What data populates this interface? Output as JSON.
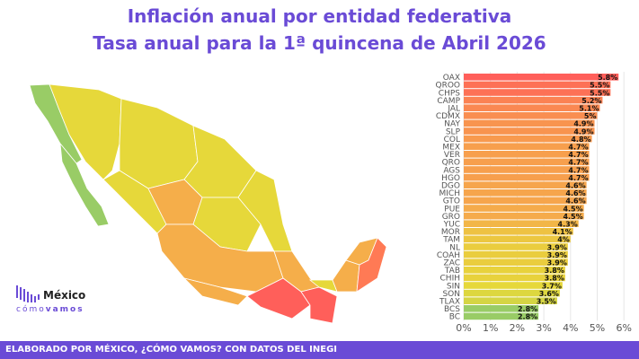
{
  "title": "Inflación anual por entidad federativa",
  "subtitle": "Tasa anual para la 1ª quincena de Abril 2026",
  "footer": "ELABORADO POR MÉXICO, ¿CÓMO VAMOS? CON DATOS DEL INEGI",
  "logo": {
    "name": "México",
    "tag_light": "cómo",
    "tag_bold": "vamos"
  },
  "chart_data": {
    "type": "bar",
    "orientation": "horizontal",
    "categories": [
      "OAX",
      "QROO",
      "CHPS",
      "CAMP",
      "JAL",
      "CDMX",
      "NAY",
      "SLP",
      "COL",
      "MEX",
      "VER",
      "QRO",
      "AGS",
      "HGO",
      "DGO",
      "MICH",
      "GTO",
      "PUE",
      "GRO",
      "YUC",
      "MOR",
      "TAM",
      "NL",
      "COAH",
      "ZAC",
      "TAB",
      "CHIH",
      "SIN",
      "SON",
      "TLAX",
      "BCS",
      "BC"
    ],
    "values": [
      5.8,
      5.5,
      5.5,
      5.2,
      5.1,
      5,
      4.9,
      4.9,
      4.8,
      4.7,
      4.7,
      4.7,
      4.7,
      4.7,
      4.6,
      4.6,
      4.6,
      4.5,
      4.5,
      4.3,
      4.1,
      4,
      3.9,
      3.9,
      3.9,
      3.8,
      3.8,
      3.7,
      3.6,
      3.5,
      2.8,
      2.8
    ],
    "labels": [
      "5.8%",
      "5.5%",
      "5.5%",
      "5.2%",
      "5.1%",
      "5%",
      "4.9%",
      "4.9%",
      "4.8%",
      "4.7%",
      "4.7%",
      "4.7%",
      "4.7%",
      "4.7%",
      "4.6%",
      "4.6%",
      "4.6%",
      "4.5%",
      "4.5%",
      "4.3%",
      "4.1%",
      "4%",
      "3.9%",
      "3.9%",
      "3.9%",
      "3.8%",
      "3.8%",
      "3.7%",
      "3.6%",
      "3.5%",
      "2.8%",
      "2.8%"
    ],
    "xticks": [
      "0%",
      "1%",
      "2%",
      "3%",
      "4%",
      "5%",
      "6%"
    ],
    "xlim": [
      0,
      6
    ],
    "grid": true,
    "color_scale": [
      "#99cc66",
      "#e6d83a",
      "#f5ae4a",
      "#ff5f5a"
    ]
  }
}
